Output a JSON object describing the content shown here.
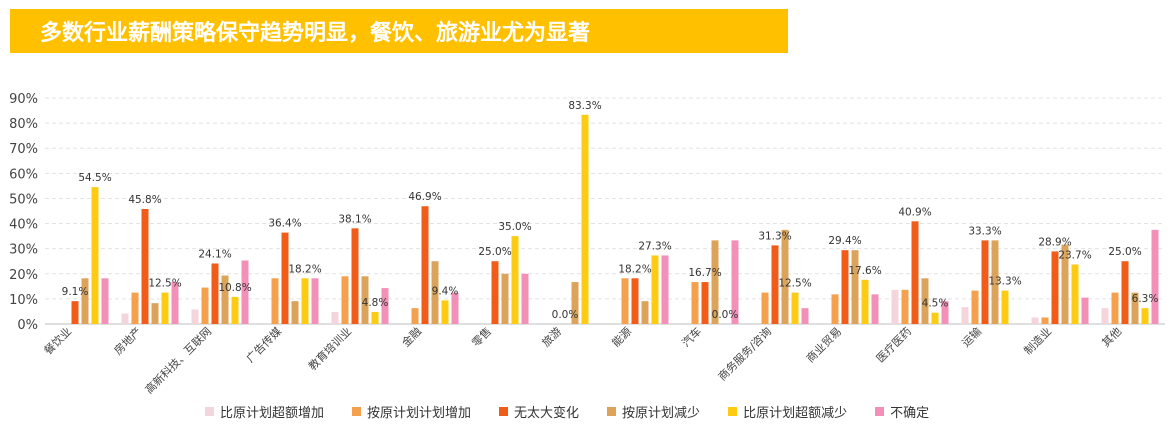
{
  "title": "多数行业薪酬策略保守趋势明显，餐饮、旅游业尤为显著",
  "chart_data": {
    "type": "bar",
    "ylim": [
      0,
      90
    ],
    "yticks": [
      "0%",
      "10%",
      "20%",
      "30%",
      "40%",
      "50%",
      "60%",
      "70%",
      "80%",
      "90%"
    ],
    "grid": true,
    "legend_position": "bottom",
    "categories": [
      "餐饮业",
      "房地产",
      "高新科技、互联网",
      "广告传媒",
      "教育培训业",
      "金融",
      "零售",
      "旅游",
      "能源",
      "汽车",
      "商务服务/咨询",
      "商业贸易",
      "医疗医药",
      "运输",
      "制造业",
      "其他"
    ],
    "series": [
      {
        "name": "比原计划超额增加",
        "color": "#F5D5DC",
        "values": [
          0,
          4.2,
          5.8,
          0,
          4.8,
          0,
          0,
          0,
          0,
          0,
          0,
          0,
          13.6,
          6.7,
          2.6,
          6.3
        ]
      },
      {
        "name": "按原计划计划增加",
        "color": "#F4A04C",
        "values": [
          0,
          12.5,
          14.5,
          18.2,
          19.0,
          6.3,
          0,
          0,
          18.2,
          16.7,
          12.5,
          11.8,
          13.6,
          13.3,
          2.6,
          12.5
        ]
      },
      {
        "name": "无太大变化",
        "color": "#F25C19",
        "values": [
          9.1,
          45.8,
          24.1,
          36.4,
          38.1,
          46.9,
          25.0,
          0,
          18.2,
          16.7,
          31.3,
          29.4,
          40.9,
          33.3,
          28.9,
          25.0
        ]
      },
      {
        "name": "按原计划减少",
        "color": "#DBA45A",
        "values": [
          18.2,
          8.3,
          19.3,
          9.1,
          19.0,
          25.0,
          20.0,
          16.7,
          9.1,
          33.3,
          37.5,
          29.4,
          18.2,
          33.3,
          31.6,
          12.5
        ]
      },
      {
        "name": "比原计划超额减少",
        "color": "#FCCB12",
        "values": [
          54.5,
          12.5,
          10.8,
          18.2,
          4.8,
          9.4,
          35.0,
          83.3,
          27.3,
          0,
          12.5,
          17.6,
          4.5,
          13.3,
          23.7,
          6.3
        ]
      },
      {
        "name": "不确定",
        "color": "#F290B7",
        "values": [
          18.2,
          16.7,
          25.3,
          18.2,
          14.3,
          12.5,
          20.0,
          0,
          27.3,
          33.3,
          6.3,
          11.8,
          9.1,
          0,
          10.5,
          37.5
        ]
      }
    ],
    "data_labels": [
      {
        "category": 0,
        "series": 2,
        "text": "9.1%"
      },
      {
        "category": 0,
        "series": 4,
        "text": "54.5%"
      },
      {
        "category": 1,
        "series": 2,
        "text": "45.8%"
      },
      {
        "category": 1,
        "series": 4,
        "text": "12.5%"
      },
      {
        "category": 2,
        "series": 2,
        "text": "24.1%"
      },
      {
        "category": 2,
        "series": 4,
        "text": "10.8%"
      },
      {
        "category": 3,
        "series": 2,
        "text": "36.4%"
      },
      {
        "category": 3,
        "series": 4,
        "text": "18.2%"
      },
      {
        "category": 4,
        "series": 2,
        "text": "38.1%"
      },
      {
        "category": 4,
        "series": 4,
        "text": "4.8%"
      },
      {
        "category": 5,
        "series": 2,
        "text": "46.9%"
      },
      {
        "category": 5,
        "series": 4,
        "text": "9.4%"
      },
      {
        "category": 6,
        "series": 2,
        "text": "25.0%"
      },
      {
        "category": 6,
        "series": 4,
        "text": "35.0%"
      },
      {
        "category": 7,
        "series": 2,
        "text": "0.0%"
      },
      {
        "category": 7,
        "series": 4,
        "text": "83.3%"
      },
      {
        "category": 8,
        "series": 2,
        "text": "18.2%"
      },
      {
        "category": 8,
        "series": 4,
        "text": "27.3%"
      },
      {
        "category": 9,
        "series": 2,
        "text": "16.7%"
      },
      {
        "category": 9,
        "series": 4,
        "text": "0.0%"
      },
      {
        "category": 10,
        "series": 2,
        "text": "31.3%"
      },
      {
        "category": 10,
        "series": 4,
        "text": "12.5%"
      },
      {
        "category": 11,
        "series": 2,
        "text": "29.4%"
      },
      {
        "category": 11,
        "series": 4,
        "text": "17.6%"
      },
      {
        "category": 12,
        "series": 2,
        "text": "40.9%"
      },
      {
        "category": 12,
        "series": 4,
        "text": "4.5%"
      },
      {
        "category": 13,
        "series": 2,
        "text": "33.3%"
      },
      {
        "category": 13,
        "series": 4,
        "text": "13.3%"
      },
      {
        "category": 14,
        "series": 2,
        "text": "28.9%"
      },
      {
        "category": 14,
        "series": 4,
        "text": "23.7%"
      },
      {
        "category": 15,
        "series": 2,
        "text": "25.0%"
      },
      {
        "category": 15,
        "series": 4,
        "text": "6.3%"
      }
    ]
  }
}
